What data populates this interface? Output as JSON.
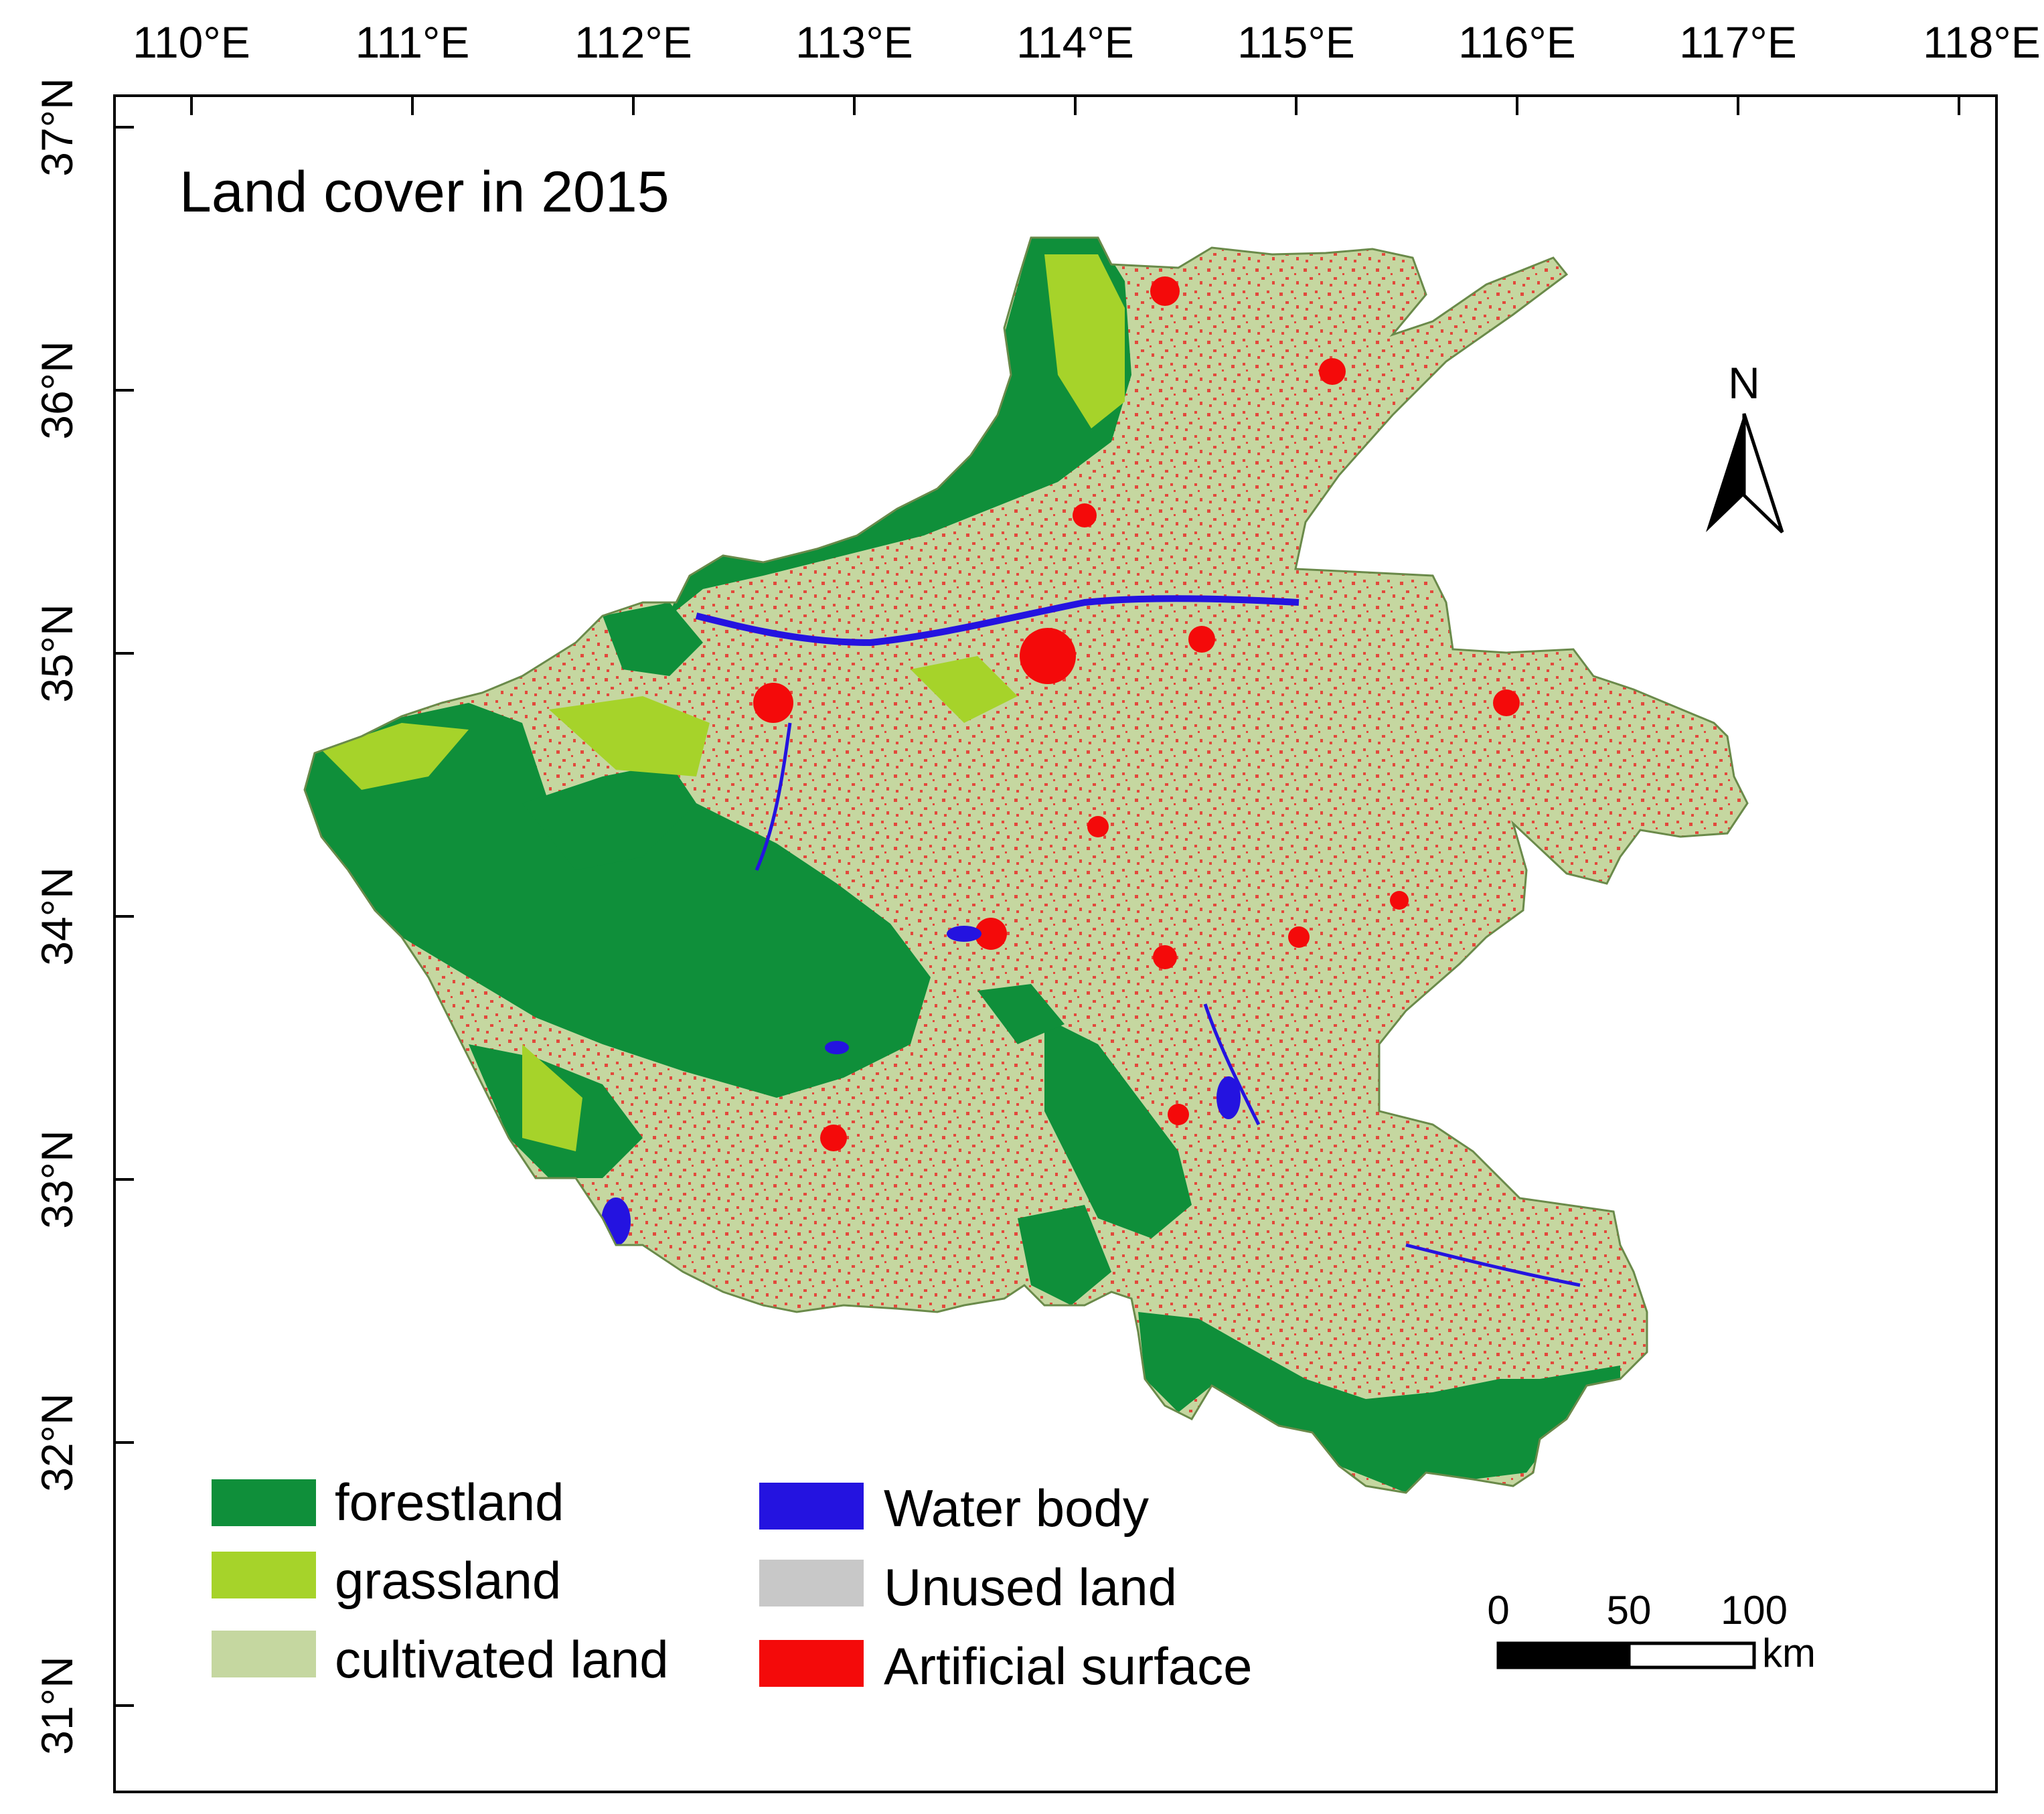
{
  "map": {
    "title": "Land cover in 2015",
    "x_axis_ticks": [
      "110°E",
      "111°E",
      "112°E",
      "113°E",
      "114°E",
      "115°E",
      "116°E",
      "117°E",
      "118°E"
    ],
    "y_axis_ticks": [
      "37°N",
      "36°N",
      "35°N",
      "34°N",
      "33°N",
      "32°N",
      "31°N"
    ],
    "north_label": "N",
    "scale_bar": {
      "labels": [
        "0",
        "50",
        "100"
      ],
      "unit": "km"
    },
    "legend": [
      {
        "label": "forestland",
        "color": "#0f8f3a"
      },
      {
        "label": "grassland",
        "color": "#a6d32a"
      },
      {
        "label": "cultivated land",
        "color": "#c5d7a0"
      },
      {
        "label": "Water body",
        "color": "#2413e0"
      },
      {
        "label": "Unused land",
        "color": "#c8c8c8"
      },
      {
        "label": "Artificial surface",
        "color": "#f40a0a"
      }
    ]
  }
}
